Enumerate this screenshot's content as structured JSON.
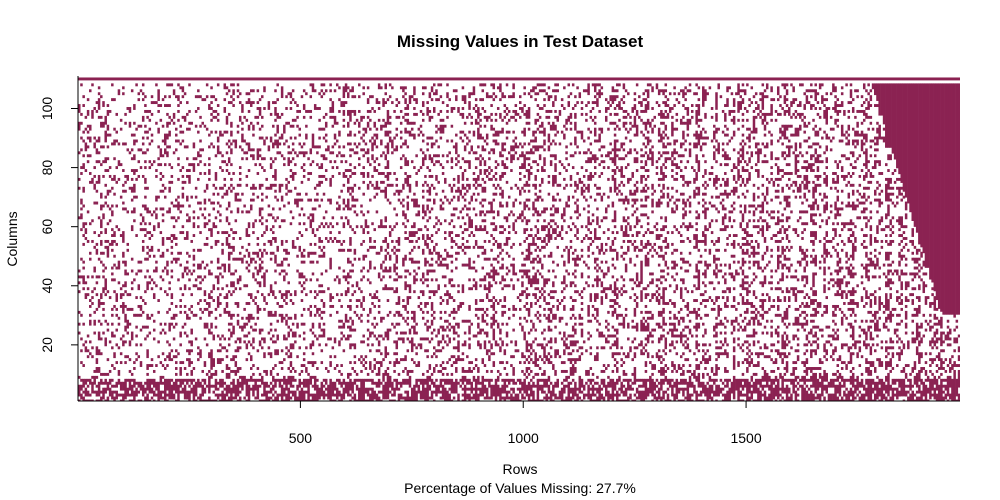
{
  "chart_data": {
    "type": "heatmap",
    "title": "Missing Values in Test Dataset",
    "xlabel": "Rows",
    "ylabel": "Columns",
    "subtitle": "Percentage of Values Missing: 27.7%",
    "missing_percent": 27.7,
    "xlim": [
      1,
      1980
    ],
    "ylim": [
      1,
      111
    ],
    "x_ticks": [
      500,
      1000,
      1500
    ],
    "y_ticks": [
      20,
      40,
      60,
      80,
      100
    ],
    "n_rows": 1980,
    "n_columns": 111,
    "fully_missing_column": 110,
    "colors": {
      "missing": "#8b2252",
      "present": "#ffffff",
      "axis": "#000000"
    }
  }
}
